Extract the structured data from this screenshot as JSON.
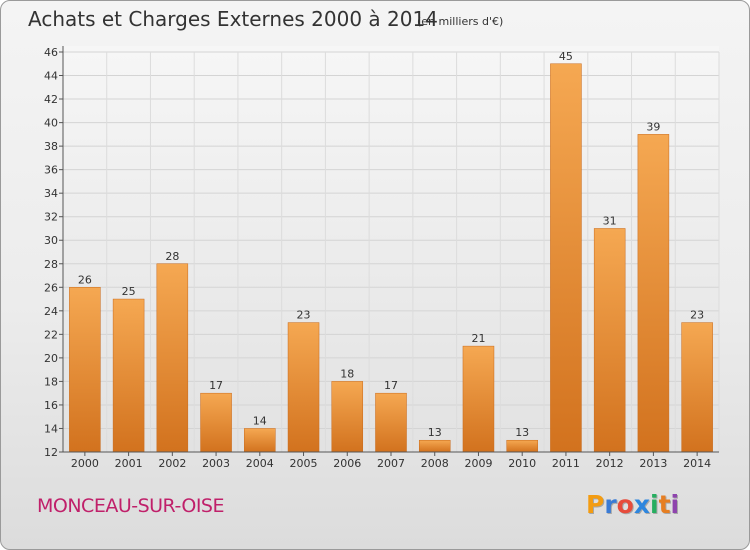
{
  "header": {
    "title": "Achats et Charges Externes 2000 à 2014",
    "subtitle": "(en milliers d'€)"
  },
  "footer": {
    "commune": "MONCEAU-SUR-OISE",
    "logo_letters": [
      "P",
      "r",
      "o",
      "x",
      "i",
      "t",
      "i"
    ],
    "logo_colors": [
      "#f39c12",
      "#3a7bd5",
      "#e74c3c",
      "#2e86de",
      "#27ae60",
      "#e67e22",
      "#8e44ad"
    ]
  },
  "chart_data": {
    "type": "bar",
    "title": "Achats et Charges Externes 2000 à 2014",
    "subtitle": "(en milliers d'€)",
    "categories": [
      "2000",
      "2001",
      "2002",
      "2003",
      "2004",
      "2005",
      "2006",
      "2007",
      "2008",
      "2009",
      "2010",
      "2011",
      "2012",
      "2013",
      "2014"
    ],
    "values": [
      26,
      25,
      28,
      17,
      14,
      23,
      18,
      17,
      13,
      21,
      13,
      45,
      31,
      39,
      23
    ],
    "ylim": [
      12,
      46
    ],
    "yticks": [
      12,
      14,
      16,
      18,
      20,
      22,
      24,
      26,
      28,
      30,
      32,
      34,
      36,
      38,
      40,
      42,
      44,
      46
    ],
    "grid": true,
    "bar_color": "#f0a04b",
    "bar_color_dark": "#d2721e"
  }
}
